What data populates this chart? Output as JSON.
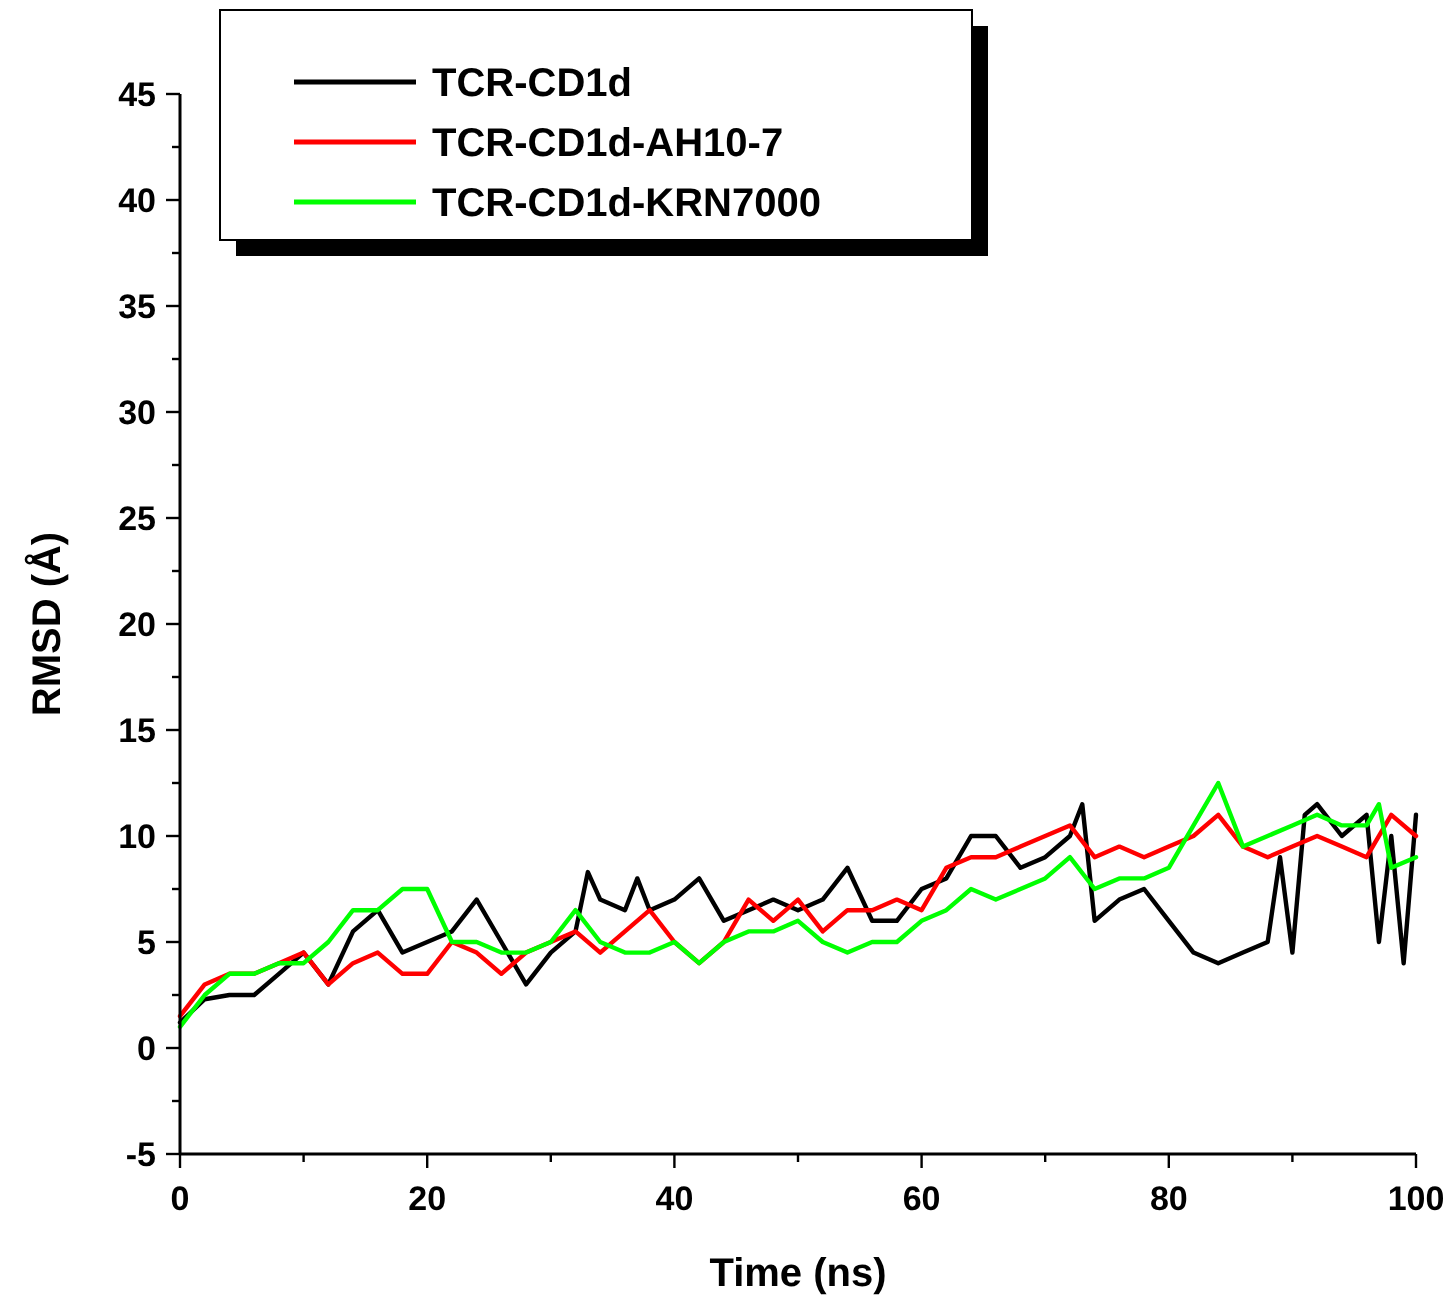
{
  "chart_data": {
    "type": "line",
    "xlabel": "Time (ns)",
    "ylabel": "RMSD (Å)",
    "xlim": [
      0,
      100
    ],
    "ylim": [
      -5,
      45
    ],
    "xticks": [
      0,
      {
        "value": 10,
        "label": null
      },
      20,
      {
        "value": 30,
        "label": null
      },
      40,
      {
        "value": 50,
        "label": null
      },
      60,
      {
        "value": 70,
        "label": null
      },
      80,
      {
        "value": 90,
        "label": null
      },
      100
    ],
    "yticks": [
      -5,
      {
        "value": -2.5,
        "label": null
      },
      0,
      {
        "value": 2.5,
        "label": null
      },
      5,
      {
        "value": 7.5,
        "label": null
      },
      10,
      {
        "value": 12.5,
        "label": null
      },
      15,
      {
        "value": 17.5,
        "label": null
      },
      20,
      {
        "value": 22.5,
        "label": null
      },
      25,
      {
        "value": 27.5,
        "label": null
      },
      30,
      {
        "value": 32.5,
        "label": null
      },
      35,
      {
        "value": 37.5,
        "label": null
      },
      40,
      {
        "value": 42.5,
        "label": null
      },
      45
    ],
    "grid": false,
    "legend": "top left",
    "marker": "none",
    "line_style": "solid",
    "series": [
      {
        "name": "TCR-CD1d",
        "color": "#000000",
        "x": [
          0,
          2,
          4,
          6,
          8,
          10,
          12,
          14,
          16,
          18,
          20,
          22,
          24,
          26,
          28,
          30,
          32,
          33,
          34,
          36,
          37,
          38,
          40,
          42,
          44,
          46,
          48,
          50,
          52,
          54,
          56,
          58,
          60,
          62,
          64,
          66,
          68,
          70,
          72,
          73,
          74,
          76,
          78,
          80,
          82,
          84,
          86,
          88,
          89,
          90,
          91,
          92,
          94,
          96,
          97,
          98,
          99,
          100
        ],
        "values": [
          1.2,
          2.3,
          2.5,
          2.5,
          3.5,
          4.5,
          3,
          5.5,
          6.5,
          4.5,
          5,
          5.5,
          7,
          5,
          3,
          4.5,
          5.5,
          8.3,
          7,
          6.5,
          8,
          6.5,
          7,
          8,
          6,
          6.5,
          7,
          6.5,
          7,
          8.5,
          6,
          6,
          7.5,
          8,
          10,
          10,
          8.5,
          9,
          10,
          11.5,
          6,
          7,
          7.5,
          6,
          4.5,
          4,
          4.5,
          5,
          9,
          4.5,
          11,
          11.5,
          10,
          11,
          5,
          10,
          4,
          11
        ]
      },
      {
        "name": "TCR-CD1d-AH10-7",
        "color": "#ff0000",
        "x": [
          0,
          2,
          4,
          6,
          8,
          10,
          12,
          14,
          16,
          18,
          20,
          22,
          24,
          26,
          28,
          30,
          32,
          34,
          36,
          38,
          40,
          42,
          44,
          46,
          48,
          50,
          52,
          54,
          56,
          58,
          60,
          62,
          64,
          66,
          68,
          70,
          72,
          74,
          76,
          78,
          80,
          82,
          84,
          86,
          88,
          90,
          92,
          94,
          96,
          98,
          100
        ],
        "values": [
          1.5,
          3,
          3.5,
          3.5,
          4,
          4.5,
          3,
          4,
          4.5,
          3.5,
          3.5,
          5,
          4.5,
          3.5,
          4.5,
          5,
          5.5,
          4.5,
          5.5,
          6.5,
          5,
          4,
          5,
          7,
          6,
          7,
          5.5,
          6.5,
          6.5,
          7,
          6.5,
          8.5,
          9,
          9,
          9.5,
          10,
          10.5,
          9,
          9.5,
          9,
          9.5,
          10,
          11,
          9.5,
          9,
          9.5,
          10,
          9.5,
          9,
          11,
          10
        ]
      },
      {
        "name": "TCR-CD1d-KRN7000",
        "color": "#00ff00",
        "x": [
          0,
          2,
          4,
          6,
          8,
          10,
          12,
          14,
          16,
          18,
          20,
          22,
          24,
          26,
          28,
          30,
          32,
          34,
          36,
          38,
          40,
          42,
          44,
          46,
          48,
          50,
          52,
          54,
          56,
          58,
          60,
          62,
          64,
          66,
          68,
          70,
          72,
          74,
          76,
          78,
          80,
          82,
          84,
          86,
          88,
          90,
          92,
          94,
          96,
          97,
          98,
          100
        ],
        "values": [
          1,
          2.5,
          3.5,
          3.5,
          4,
          4,
          5,
          6.5,
          6.5,
          7.5,
          7.5,
          5,
          5,
          4.5,
          4.5,
          5,
          6.5,
          5,
          4.5,
          4.5,
          5,
          4,
          5,
          5.5,
          5.5,
          6,
          5,
          4.5,
          5,
          5,
          6,
          6.5,
          7.5,
          7,
          7.5,
          8,
          9,
          7.5,
          8,
          8,
          8.5,
          10.5,
          12.5,
          9.5,
          10,
          10.5,
          11,
          10.5,
          10.5,
          11.5,
          8.5,
          9
        ]
      }
    ]
  }
}
